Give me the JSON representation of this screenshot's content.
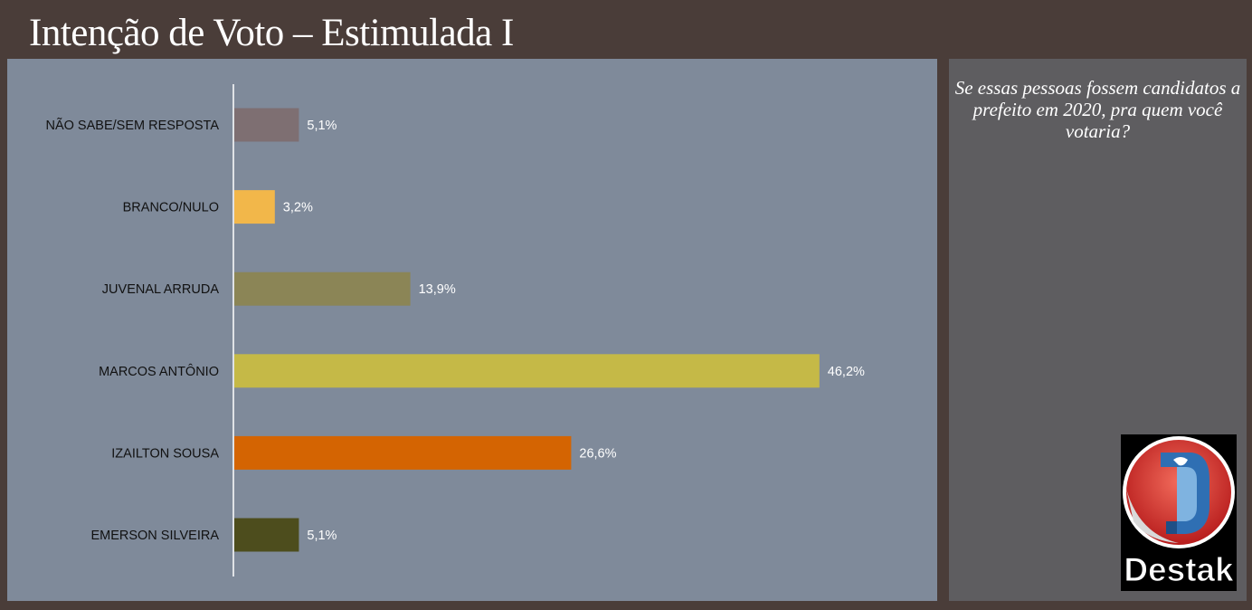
{
  "header": {
    "title": "Intenção de Voto – Estimulada I"
  },
  "side": {
    "question": "Se essas pessoas fossem candidatos a prefeito em 2020, pra quem você votaria?",
    "logo_text": "Destak"
  },
  "chart_data": {
    "type": "bar",
    "orientation": "horizontal",
    "title": "",
    "xlabel": "",
    "ylabel": "",
    "categories": [
      "NÃO SABE/SEM RESPOSTA",
      "BRANCO/NULO",
      "JUVENAL ARRUDA",
      "MARCOS ANTÔNIO",
      "IZAILTON SOUSA",
      "EMERSON SILVEIRA"
    ],
    "values": [
      5.1,
      3.2,
      13.9,
      46.2,
      26.6,
      5.1
    ],
    "value_labels": [
      "5,1%",
      "3,2%",
      "13,9%",
      "46,2%",
      "26,6%",
      "5,1%"
    ],
    "colors": [
      "#7e6f72",
      "#f2b74a",
      "#8b8556",
      "#c5b947",
      "#d46402",
      "#4d4d1d"
    ],
    "xlim": [
      0,
      50
    ],
    "grid": false,
    "legend": "none"
  }
}
